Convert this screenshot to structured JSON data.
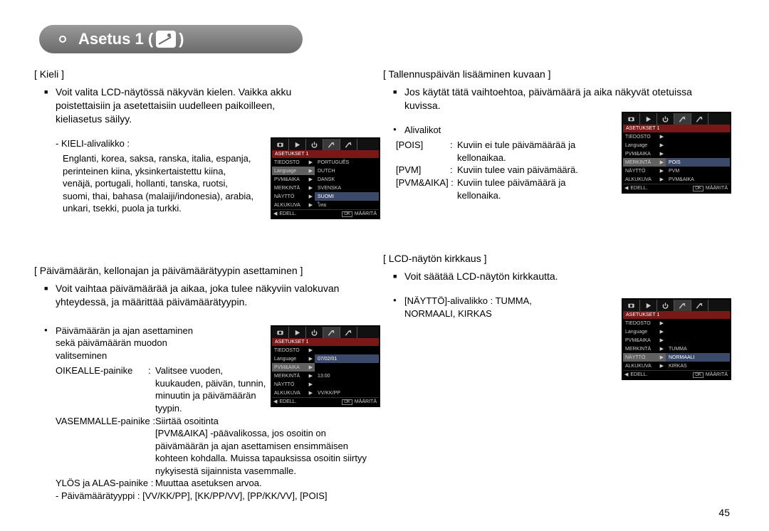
{
  "page": {
    "title_prefix": "Asetus 1 (",
    "title_suffix": ")",
    "number": "45"
  },
  "left": {
    "s1_title": "[ Kieli ]",
    "s1_bullet": "Voit valita LCD-näytössä näkyvän kielen. Vaikka akku poistettaisiin ja asetettaisiin uudelleen paikoilleen, kieliasetus säilyy.",
    "s1_dash": "- KIELI-alivalikko :",
    "s1_langs": "Englanti, korea, saksa, ranska, italia, espanja, perinteinen kiina, yksinkertaistettu kiina, venäjä, portugali, hollanti, tanska, ruotsi, suomi, thai, bahasa (malaiji/indonesia), arabia, unkari, tsekki, puola ja turkki.",
    "s2_title": "[ Päivämäärän, kellonajan ja päivämäärätyypin asettaminen ]",
    "s2_bullet": "Voit vaihtaa päivämäärää ja aikaa, joka tulee näkyviin valokuvan yhteydessä, ja määrittää päivämäärätyypin.",
    "s2_disc": "Päivämäärän ja ajan asettaminen sekä päivämäärän muodon valitseminen",
    "s2_k1": "OIKEALLE-painike",
    "s2_v1": "Valitsee vuoden, kuukauden, päivän, tunnin, minuutin ja päivämäärän tyypin.",
    "s2_k2": "VASEMMALLE-painike :",
    "s2_v2a": "Siirtää osoitinta",
    "s2_v2b": "[PVM&AIKA] -päävalikossa, jos osoitin on päivämäärän ja ajan asettamisen ensimmäisen kohteen kohdalla. Muissa tapauksissa osoitin siirtyy nykyisestä sijainnista vasemmalle.",
    "s2_k3": "YLÖS ja ALAS-painike :",
    "s2_v3": "Muuttaa asetuksen arvoa.",
    "s2_types": "- Päivämäärätyyppi : [VV/KK/PP], [KK/PP/VV], [PP/KK/VV], [POIS]"
  },
  "right": {
    "s1_title": "[ Tallennuspäivän lisääminen kuvaan ]",
    "s1_bullet": "Jos käytät tätä vaihtoehtoa, päivämäärä ja aika näkyvät otetuissa kuvissa.",
    "s1_disc": "Alivalikot",
    "s1_k1": "[POIS]",
    "s1_v1": "Kuviin ei tule päivämäärää ja kellonaikaa.",
    "s1_k2": "[PVM]",
    "s1_v2": "Kuviin tulee vain päivämäärä.",
    "s1_k3": "[PVM&AIKA] :",
    "s1_v3": "Kuviin tulee päivämäärä ja kellonaika.",
    "s2_title": "[ LCD-näytön kirkkaus ]",
    "s2_bullet": "Voit säätää LCD-näytön kirkkautta.",
    "s2_disc": "[NÄYTTÖ]-alivalikko : TUMMA, NORMAALI, KIRKAS"
  },
  "lcd1": {
    "header": "ASETUKSET 1",
    "left": [
      "TIEDOSTO",
      "Language",
      "PVM&AIKA",
      "MERKINTÄ",
      "NÄYTTÖ",
      "ALKUKUVA"
    ],
    "right": [
      "PORTUGUÊS",
      "DUTCH",
      "DANSK",
      "SVENSKA",
      "SUOMI",
      "ไทย"
    ],
    "footer_left": "EDELL.",
    "footer_ok": "OK",
    "footer_right": "MÄÄRITÄ"
  },
  "lcd2": {
    "header": "ASETUKSET 1",
    "left": [
      "TIEDOSTO",
      "Language",
      "PVM&AIKA",
      "MERKINTÄ",
      "NÄYTTÖ",
      "ALKUKUVA"
    ],
    "right": [
      "",
      "07/02/01",
      "",
      "13:00",
      "",
      "VV/KK/PP"
    ],
    "footer_left": "EDELL.",
    "footer_ok": "OK",
    "footer_right": "MÄÄRITÄ"
  },
  "lcd3": {
    "header": "ASETUKSET 1",
    "left": [
      "TIEDOSTO",
      "Language",
      "PVM&AIKA",
      "MERKINTÄ",
      "NÄYTTÖ",
      "ALKUKUVA"
    ],
    "right": [
      "",
      "",
      "",
      "POIS",
      "PVM",
      "PVM&AIKA"
    ],
    "footer_left": "EDELL.",
    "footer_ok": "OK",
    "footer_right": "MÄÄRITÄ"
  },
  "lcd4": {
    "header": "ASETUKSET 1",
    "left": [
      "TIEDOSTO",
      "Language",
      "PVM&AIKA",
      "MERKINTÄ",
      "NÄYTTÖ",
      "ALKUKUVA"
    ],
    "right": [
      "",
      "",
      "",
      "TUMMA",
      "NORMAALI",
      "KIRKAS"
    ],
    "footer_left": "EDELL.",
    "footer_ok": "OK",
    "footer_right": "MÄÄRITÄ"
  }
}
